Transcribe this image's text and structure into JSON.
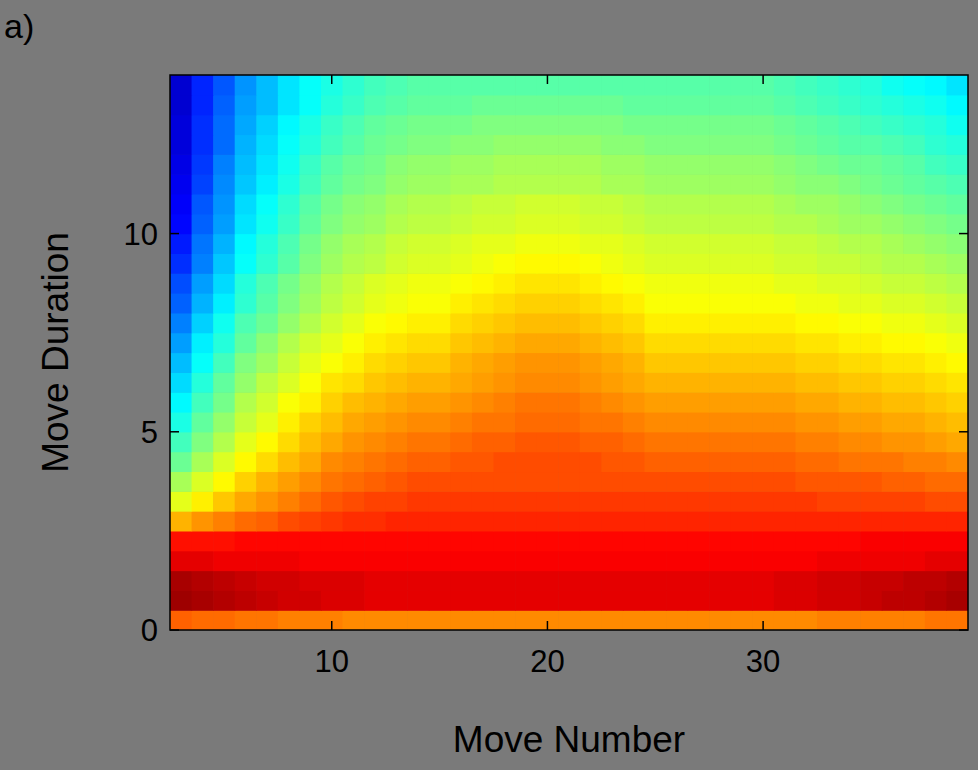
{
  "chart_data": {
    "type": "heatmap",
    "panel_label": "a)",
    "xlabel": "Move Number",
    "ylabel": "Move Duration",
    "xlim": [
      2.5,
      39.5
    ],
    "ylim": [
      0,
      14
    ],
    "xticks": [
      10,
      20,
      30
    ],
    "yticks": [
      0,
      5,
      10
    ],
    "color_range": [
      0,
      100
    ],
    "x": [
      3,
      4,
      5,
      6,
      7,
      8,
      9,
      10,
      11,
      12,
      13,
      14,
      15,
      16,
      17,
      18,
      19,
      20,
      21,
      22,
      23,
      24,
      25,
      26,
      27,
      28,
      29,
      30,
      31,
      32,
      33,
      34,
      35,
      36,
      37,
      38,
      39
    ],
    "y": [
      0.25,
      0.75,
      1.25,
      1.75,
      2.25,
      2.75,
      3.25,
      3.75,
      4.25,
      4.75,
      5.25,
      5.75,
      6.25,
      6.75,
      7.25,
      7.75,
      8.25,
      8.75,
      9.25,
      9.75,
      10.25,
      10.75,
      11.25,
      11.75,
      12.25,
      12.75,
      13.25,
      13.75
    ],
    "cells": [
      [
        78,
        77,
        77,
        76,
        76,
        75,
        75,
        75,
        74,
        74,
        74,
        74,
        74,
        74,
        74,
        74,
        74,
        74,
        74,
        74,
        74,
        74,
        74,
        74,
        74,
        74,
        74,
        74,
        74,
        74,
        75,
        75,
        75,
        75,
        75,
        76,
        76
      ],
      [
        97,
        96,
        95,
        94,
        93,
        92,
        92,
        91,
        91,
        90,
        90,
        90,
        90,
        90,
        90,
        90,
        90,
        90,
        90,
        90,
        90,
        90,
        90,
        90,
        90,
        90,
        90,
        90,
        91,
        91,
        92,
        92,
        93,
        94,
        94,
        95,
        96
      ],
      [
        96,
        95,
        94,
        93,
        92,
        92,
        91,
        91,
        91,
        90,
        90,
        90,
        90,
        90,
        90,
        90,
        90,
        90,
        90,
        90,
        90,
        90,
        90,
        90,
        90,
        90,
        90,
        90,
        91,
        91,
        92,
        92,
        93,
        93,
        94,
        94,
        95
      ],
      [
        90,
        90,
        89,
        89,
        89,
        89,
        88,
        88,
        88,
        88,
        88,
        88,
        88,
        88,
        88,
        88,
        88,
        88,
        88,
        88,
        88,
        88,
        88,
        88,
        88,
        88,
        88,
        88,
        88,
        88,
        89,
        89,
        89,
        89,
        89,
        90,
        90
      ],
      [
        86,
        86,
        86,
        87,
        87,
        87,
        87,
        87,
        87,
        87,
        87,
        87,
        87,
        87,
        87,
        87,
        87,
        87,
        87,
        87,
        87,
        87,
        87,
        87,
        87,
        87,
        87,
        87,
        87,
        87,
        87,
        87,
        88,
        88,
        88,
        88,
        88
      ],
      [
        70,
        73,
        75,
        77,
        78,
        80,
        81,
        82,
        83,
        83,
        84,
        84,
        84,
        84,
        84,
        84,
        84,
        84,
        84,
        84,
        84,
        84,
        84,
        84,
        84,
        84,
        84,
        84,
        84,
        84,
        84,
        84,
        84,
        84,
        84,
        84,
        84
      ],
      [
        60,
        64,
        68,
        71,
        73,
        75,
        77,
        79,
        80,
        81,
        81,
        82,
        82,
        82,
        82,
        82,
        82,
        82,
        82,
        82,
        82,
        82,
        82,
        82,
        82,
        82,
        82,
        82,
        82,
        82,
        81,
        81,
        81,
        81,
        81,
        80,
        80
      ],
      [
        54,
        59,
        63,
        67,
        70,
        72,
        74,
        76,
        77,
        78,
        79,
        80,
        80,
        80,
        80,
        80,
        80,
        80,
        80,
        80,
        80,
        80,
        80,
        80,
        80,
        80,
        80,
        80,
        80,
        79,
        79,
        79,
        79,
        78,
        78,
        77,
        77
      ],
      [
        48,
        54,
        59,
        63,
        66,
        69,
        71,
        74,
        75,
        76,
        77,
        78,
        78,
        79,
        79,
        80,
        80,
        80,
        80,
        80,
        79,
        79,
        78,
        78,
        78,
        78,
        78,
        78,
        78,
        77,
        77,
        76,
        76,
        76,
        75,
        75,
        74
      ],
      [
        44,
        50,
        55,
        60,
        63,
        66,
        69,
        71,
        73,
        74,
        75,
        76,
        76,
        77,
        78,
        78,
        79,
        79,
        79,
        78,
        78,
        77,
        76,
        76,
        76,
        76,
        76,
        76,
        76,
        75,
        75,
        74,
        74,
        73,
        73,
        72,
        71
      ],
      [
        40,
        47,
        52,
        57,
        60,
        64,
        67,
        69,
        71,
        72,
        73,
        74,
        74,
        75,
        76,
        76,
        77,
        77,
        77,
        76,
        76,
        75,
        74,
        74,
        74,
        74,
        74,
        74,
        74,
        73,
        73,
        72,
        72,
        71,
        71,
        70,
        69
      ],
      [
        37,
        44,
        49,
        55,
        58,
        62,
        64,
        67,
        69,
        70,
        71,
        72,
        72,
        73,
        74,
        75,
        76,
        76,
        76,
        75,
        74,
        73,
        72,
        72,
        72,
        72,
        72,
        72,
        72,
        71,
        71,
        70,
        70,
        69,
        69,
        68,
        67
      ],
      [
        34,
        41,
        47,
        52,
        56,
        59,
        62,
        65,
        66,
        68,
        69,
        70,
        70,
        71,
        72,
        73,
        74,
        74,
        74,
        73,
        72,
        71,
        70,
        70,
        70,
        70,
        70,
        70,
        70,
        69,
        69,
        68,
        68,
        67,
        67,
        66,
        65
      ],
      [
        31,
        38,
        44,
        50,
        53,
        57,
        60,
        62,
        64,
        66,
        67,
        68,
        68,
        70,
        71,
        72,
        73,
        73,
        73,
        72,
        71,
        70,
        68,
        68,
        68,
        68,
        68,
        68,
        68,
        67,
        67,
        66,
        66,
        65,
        65,
        64,
        63
      ],
      [
        28,
        36,
        41,
        47,
        51,
        55,
        58,
        60,
        62,
        64,
        65,
        66,
        66,
        68,
        69,
        70,
        71,
        71,
        71,
        70,
        69,
        68,
        66,
        66,
        66,
        66,
        66,
        66,
        66,
        65,
        65,
        64,
        64,
        63,
        63,
        62,
        61
      ],
      [
        25,
        33,
        39,
        45,
        48,
        52,
        55,
        58,
        60,
        62,
        63,
        64,
        64,
        66,
        67,
        68,
        69,
        69,
        69,
        68,
        67,
        66,
        64,
        64,
        64,
        64,
        64,
        64,
        64,
        63,
        63,
        62,
        62,
        61,
        61,
        60,
        59
      ],
      [
        22,
        30,
        36,
        42,
        46,
        50,
        53,
        56,
        58,
        60,
        61,
        62,
        62,
        64,
        65,
        66,
        67,
        67,
        67,
        66,
        65,
        64,
        62,
        62,
        62,
        62,
        62,
        62,
        62,
        61,
        61,
        60,
        60,
        59,
        59,
        58,
        57
      ],
      [
        20,
        28,
        34,
        41,
        45,
        49,
        52,
        55,
        57,
        59,
        60,
        61,
        61,
        62,
        63,
        64,
        65,
        65,
        65,
        64,
        63,
        62,
        61,
        61,
        61,
        61,
        61,
        61,
        60,
        60,
        59,
        59,
        58,
        57,
        57,
        56,
        55
      ],
      [
        17,
        25,
        32,
        38,
        42,
        46,
        50,
        53,
        55,
        56,
        58,
        59,
        59,
        60,
        61,
        62,
        63,
        63,
        63,
        62,
        61,
        60,
        59,
        59,
        59,
        59,
        59,
        59,
        58,
        58,
        57,
        57,
        56,
        55,
        55,
        54,
        53
      ],
      [
        15,
        24,
        30,
        37,
        41,
        45,
        49,
        52,
        54,
        55,
        57,
        58,
        58,
        59,
        60,
        60,
        61,
        61,
        61,
        60,
        60,
        59,
        58,
        58,
        58,
        58,
        58,
        58,
        57,
        57,
        56,
        55,
        55,
        54,
        53,
        52,
        51
      ],
      [
        13,
        22,
        28,
        35,
        39,
        43,
        47,
        50,
        52,
        53,
        55,
        56,
        56,
        57,
        58,
        58,
        59,
        59,
        59,
        58,
        58,
        57,
        56,
        56,
        56,
        56,
        56,
        56,
        55,
        55,
        54,
        53,
        53,
        52,
        51,
        50,
        49
      ],
      [
        12,
        21,
        27,
        34,
        38,
        42,
        46,
        49,
        51,
        52,
        54,
        55,
        55,
        56,
        57,
        57,
        58,
        58,
        58,
        57,
        57,
        56,
        55,
        55,
        55,
        55,
        55,
        55,
        54,
        53,
        53,
        52,
        51,
        50,
        49,
        48,
        47
      ],
      [
        11,
        19,
        26,
        32,
        36,
        40,
        44,
        47,
        49,
        50,
        52,
        53,
        53,
        54,
        54,
        55,
        55,
        55,
        55,
        55,
        54,
        54,
        53,
        53,
        53,
        53,
        53,
        53,
        52,
        51,
        51,
        50,
        49,
        48,
        47,
        46,
        45
      ],
      [
        10,
        18,
        25,
        31,
        35,
        39,
        43,
        46,
        48,
        49,
        51,
        52,
        52,
        53,
        53,
        54,
        54,
        54,
        54,
        54,
        53,
        53,
        52,
        52,
        52,
        52,
        52,
        52,
        51,
        50,
        49,
        48,
        48,
        47,
        46,
        44,
        43
      ],
      [
        9,
        17,
        23,
        30,
        34,
        38,
        41,
        44,
        46,
        48,
        49,
        50,
        50,
        51,
        51,
        52,
        52,
        52,
        52,
        52,
        51,
        51,
        50,
        50,
        50,
        50,
        50,
        50,
        49,
        48,
        47,
        46,
        46,
        45,
        44,
        42,
        41
      ],
      [
        9,
        17,
        23,
        29,
        33,
        37,
        40,
        43,
        45,
        47,
        48,
        49,
        49,
        49,
        50,
        50,
        50,
        50,
        50,
        50,
        50,
        49,
        49,
        49,
        49,
        49,
        49,
        49,
        48,
        47,
        46,
        45,
        44,
        43,
        42,
        41,
        39
      ],
      [
        8,
        16,
        22,
        28,
        31,
        35,
        38,
        41,
        43,
        45,
        46,
        47,
        47,
        47,
        48,
        48,
        48,
        48,
        48,
        48,
        48,
        47,
        47,
        47,
        47,
        47,
        47,
        47,
        46,
        45,
        44,
        43,
        42,
        41,
        40,
        39,
        37
      ],
      [
        8,
        16,
        21,
        27,
        31,
        35,
        38,
        40,
        42,
        44,
        45,
        46,
        46,
        46,
        46,
        46,
        46,
        46,
        46,
        46,
        46,
        46,
        46,
        46,
        46,
        46,
        46,
        46,
        45,
        44,
        43,
        42,
        41,
        39,
        38,
        37,
        35
      ]
    ]
  }
}
